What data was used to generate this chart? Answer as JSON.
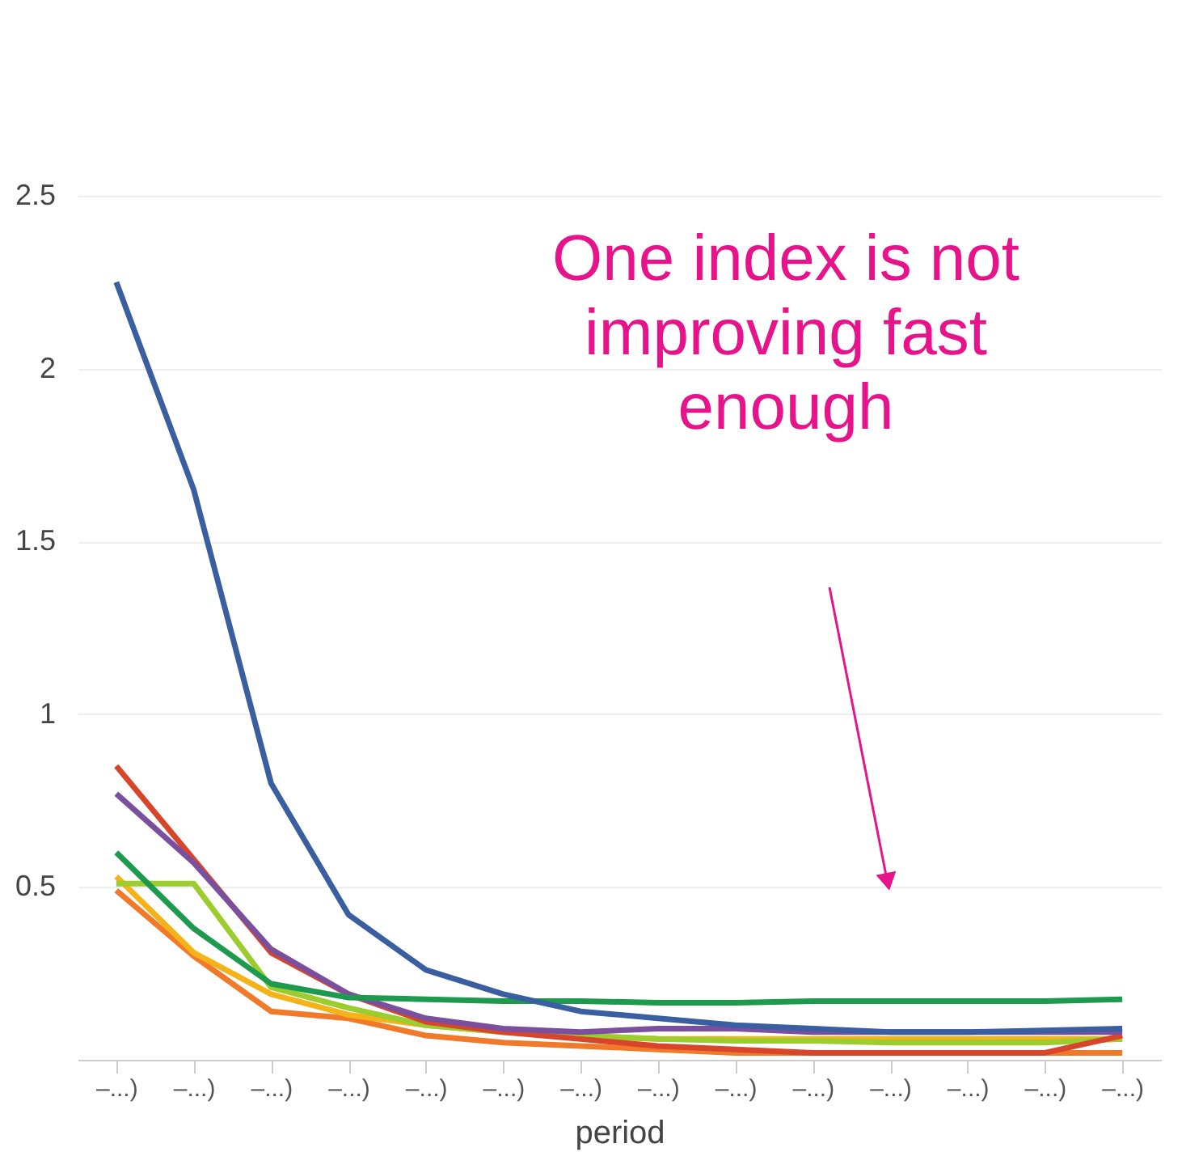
{
  "chart_data": {
    "type": "line",
    "xlabel": "period",
    "categories": [
      "–...)",
      "–...)",
      "–...)",
      "–...)",
      "–...)",
      "–...)",
      "–...)",
      "–...)",
      "–...)",
      "–...)",
      "–...)",
      "–...)",
      "–...)",
      "–...)"
    ],
    "series": [
      {
        "color": "#f07a2a",
        "values": [
          0.49,
          0.3,
          0.14,
          0.12,
          0.07,
          0.05,
          0.04,
          0.03,
          0.02,
          0.02,
          0.02,
          0.02,
          0.02,
          0.02
        ]
      },
      {
        "color": "#f5b31a",
        "values": [
          0.53,
          0.31,
          0.19,
          0.13,
          0.1,
          0.08,
          0.07,
          0.06,
          0.06,
          0.06,
          0.06,
          0.06,
          0.06,
          0.06
        ]
      },
      {
        "color": "#9ccc2e",
        "values": [
          0.51,
          0.51,
          0.21,
          0.15,
          0.1,
          0.08,
          0.07,
          0.06,
          0.055,
          0.055,
          0.05,
          0.05,
          0.05,
          0.06
        ]
      },
      {
        "color": "#d9452b",
        "values": [
          0.85,
          0.58,
          0.31,
          0.19,
          0.11,
          0.08,
          0.06,
          0.04,
          0.03,
          0.02,
          0.02,
          0.02,
          0.02,
          0.07
        ]
      },
      {
        "color": "#7a4f9e",
        "values": [
          0.77,
          0.57,
          0.32,
          0.19,
          0.12,
          0.09,
          0.08,
          0.09,
          0.09,
          0.08,
          0.08,
          0.08,
          0.08,
          0.08
        ]
      },
      {
        "color": "#1e9a4f",
        "values": [
          0.6,
          0.38,
          0.22,
          0.18,
          0.175,
          0.17,
          0.17,
          0.165,
          0.165,
          0.17,
          0.17,
          0.17,
          0.17,
          0.175
        ]
      },
      {
        "color": "#3a5fa0",
        "values": [
          2.25,
          1.65,
          0.8,
          0.42,
          0.26,
          0.19,
          0.14,
          0.12,
          0.1,
          0.09,
          0.08,
          0.08,
          0.085,
          0.09
        ]
      }
    ],
    "ylim": [
      0,
      2.5
    ],
    "yticks": [
      0.5,
      1,
      1.5,
      2,
      2.5
    ],
    "grid": "y",
    "line_style": "solid",
    "marker": "none",
    "annotations": [
      "One index is not improving fast enough"
    ]
  }
}
